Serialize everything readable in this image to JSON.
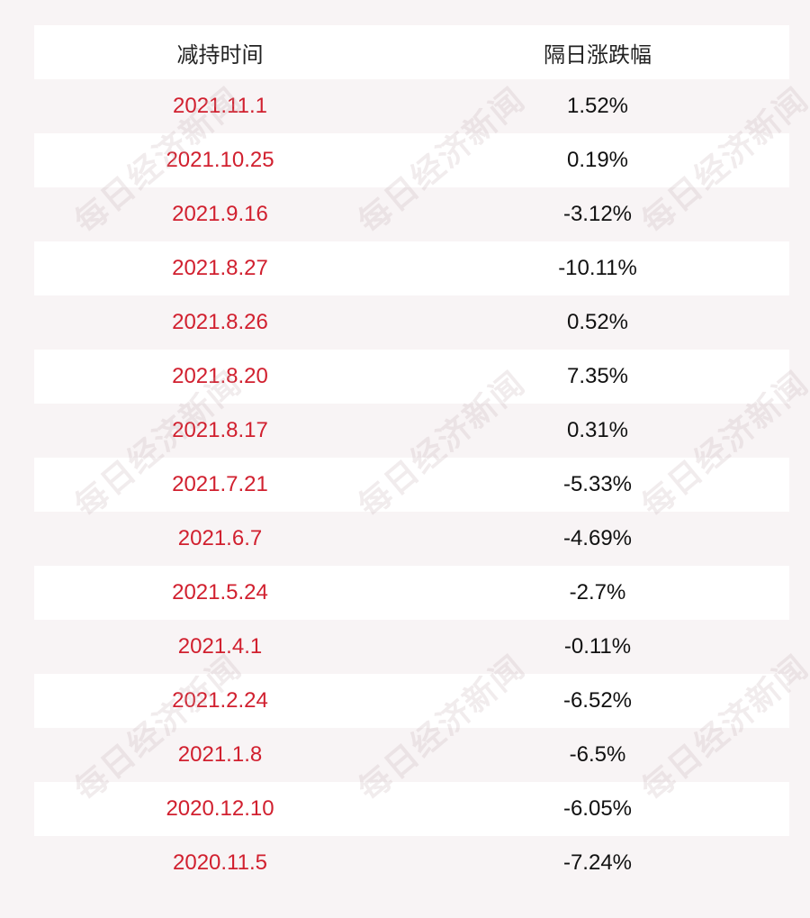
{
  "header": {
    "col1": "减持时间",
    "col2": "隔日涨跌幅"
  },
  "rows": [
    {
      "date": "2021.11.1",
      "change": "1.52%"
    },
    {
      "date": "2021.10.25",
      "change": "0.19%"
    },
    {
      "date": "2021.9.16",
      "change": "-3.12%"
    },
    {
      "date": "2021.8.27",
      "change": "-10.11%"
    },
    {
      "date": "2021.8.26",
      "change": "0.52%"
    },
    {
      "date": "2021.8.20",
      "change": "7.35%"
    },
    {
      "date": "2021.8.17",
      "change": "0.31%"
    },
    {
      "date": "2021.7.21",
      "change": "-5.33%"
    },
    {
      "date": "2021.6.7",
      "change": "-4.69%"
    },
    {
      "date": "2021.5.24",
      "change": "-2.7%"
    },
    {
      "date": "2021.4.1",
      "change": "-0.11%"
    },
    {
      "date": "2021.2.24",
      "change": "-6.52%"
    },
    {
      "date": "2021.1.8",
      "change": "-6.5%"
    },
    {
      "date": "2020.12.10",
      "change": "-6.05%"
    },
    {
      "date": "2020.11.5",
      "change": "-7.24%"
    }
  ],
  "watermark": "每日经济新闻",
  "colors": {
    "date_text": "#d1202f",
    "value_text": "#111111",
    "stripe_white": "#ffffff",
    "stripe_pink": "#f8f4f5"
  }
}
